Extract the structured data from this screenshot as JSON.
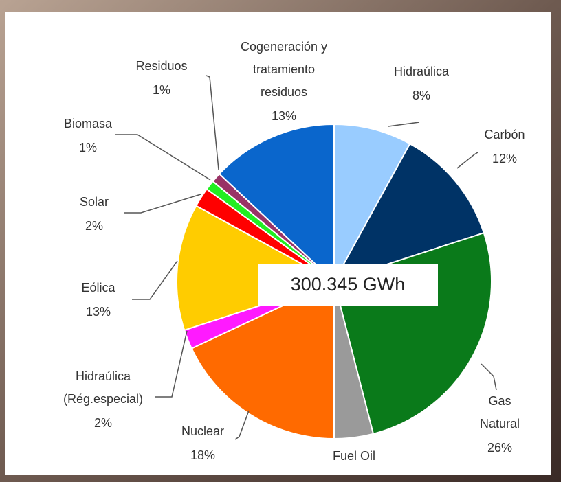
{
  "chart_data": {
    "type": "pie",
    "categories": [
      "Hidraúlica",
      "Carbón",
      "Gas Natural",
      "Fuel Oil",
      "Nuclear",
      "Hidraúlica\n(Rég.especial)",
      "Eólica",
      "Solar",
      "Biomasa",
      "Residuos",
      "Cogeneración y\ntratamiento\nresiduos"
    ],
    "values": [
      8,
      12,
      26,
      4,
      18,
      2,
      13,
      2,
      1,
      1,
      13
    ],
    "value_labels": [
      "8%",
      "12%",
      "26%",
      null,
      "18%",
      "2%",
      "13%",
      "2%",
      "1%",
      "1%",
      "13%"
    ],
    "colors": [
      "#99ccff",
      "#003366",
      "#0a7a1a",
      "#9a9a9a",
      "#ff6a00",
      "#ff1aff",
      "#ffcc00",
      "#ff0000",
      "#22ee22",
      "#993366",
      "#0a66cc"
    ],
    "annotation": "300.345 GWh"
  }
}
